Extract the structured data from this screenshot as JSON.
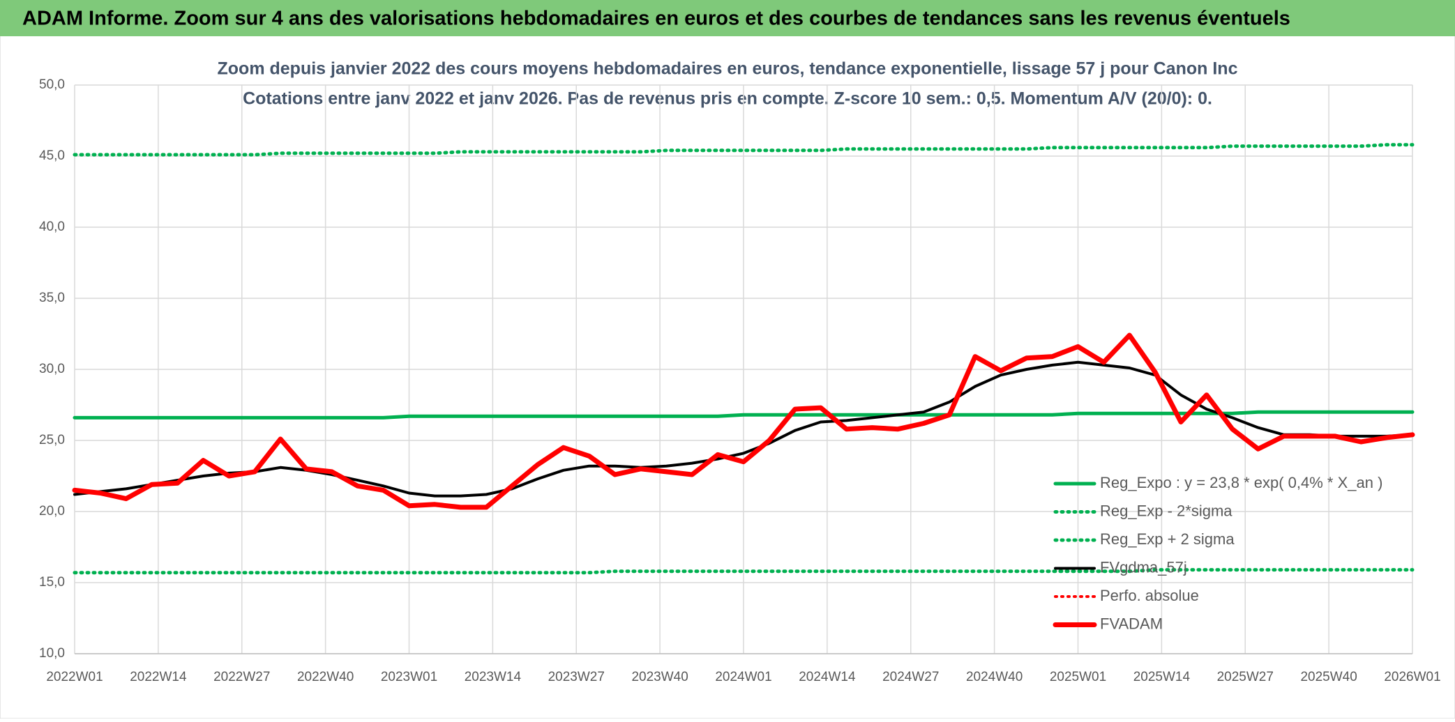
{
  "header": {
    "title": "ADAM Informe. Zoom sur 4 ans des valorisations hebdomadaires en euros et des courbes de tendances sans les revenus éventuels"
  },
  "chart_data": {
    "type": "line",
    "title": "Zoom depuis janvier 2022 des cours moyens hebdomadaires en euros, tendance exponentielle, lissage 57 j pour Canon Inc",
    "subtitle": "Cotations entre janv 2022 et janv 2026. Pas de revenus pris en compte. Z-score 10 sem.: 0,5. Momentum A/V (20/0): 0.",
    "x": [
      0,
      4,
      8,
      12,
      16,
      20,
      24,
      28,
      32,
      36,
      40,
      44,
      48,
      52,
      56,
      60,
      64,
      68,
      72,
      76,
      80,
      84,
      88,
      92,
      96,
      100,
      104,
      108,
      112,
      116,
      120,
      124,
      128,
      132,
      136,
      140,
      144,
      148,
      152,
      156,
      160,
      164,
      168,
      172,
      176,
      180,
      184,
      188,
      192,
      196,
      200,
      204,
      208
    ],
    "xlim": [
      0,
      208
    ],
    "xticks": [
      {
        "value": 0,
        "label": "2022W01"
      },
      {
        "value": 13,
        "label": "2022W14"
      },
      {
        "value": 26,
        "label": "2022W27"
      },
      {
        "value": 39,
        "label": "2022W40"
      },
      {
        "value": 52,
        "label": "2023W01"
      },
      {
        "value": 65,
        "label": "2023W14"
      },
      {
        "value": 78,
        "label": "2023W27"
      },
      {
        "value": 91,
        "label": "2023W40"
      },
      {
        "value": 104,
        "label": "2024W01"
      },
      {
        "value": 117,
        "label": "2024W14"
      },
      {
        "value": 130,
        "label": "2024W27"
      },
      {
        "value": 143,
        "label": "2024W40"
      },
      {
        "value": 156,
        "label": "2025W01"
      },
      {
        "value": 169,
        "label": "2025W14"
      },
      {
        "value": 182,
        "label": "2025W27"
      },
      {
        "value": 195,
        "label": "2025W40"
      },
      {
        "value": 208,
        "label": "2026W01"
      }
    ],
    "ylim": [
      10,
      50
    ],
    "yticks": [
      {
        "value": 10,
        "label": "10,0"
      },
      {
        "value": 15,
        "label": "15,0"
      },
      {
        "value": 20,
        "label": "20,0"
      },
      {
        "value": 25,
        "label": "25,0"
      },
      {
        "value": 30,
        "label": "30,0"
      },
      {
        "value": 35,
        "label": "35,0"
      },
      {
        "value": 40,
        "label": "40,0"
      },
      {
        "value": 45,
        "label": "45,0"
      },
      {
        "value": 50,
        "label": "50,0"
      }
    ],
    "grid": true,
    "legend": "right",
    "series": [
      {
        "name": "Reg_Expo : y = 23,8 * exp( 0,4% *  X_an )",
        "color": "#00b050",
        "line_style": "solid",
        "values": [
          26.6,
          26.6,
          26.6,
          26.6,
          26.6,
          26.6,
          26.6,
          26.6,
          26.6,
          26.6,
          26.6,
          26.6,
          26.6,
          26.7,
          26.7,
          26.7,
          26.7,
          26.7,
          26.7,
          26.7,
          26.7,
          26.7,
          26.7,
          26.7,
          26.7,
          26.7,
          26.8,
          26.8,
          26.8,
          26.8,
          26.8,
          26.8,
          26.8,
          26.8,
          26.8,
          26.8,
          26.8,
          26.8,
          26.8,
          26.9,
          26.9,
          26.9,
          26.9,
          26.9,
          26.9,
          26.9,
          27.0,
          27.0,
          27.0,
          27.0,
          27.0,
          27.0,
          27.0
        ]
      },
      {
        "name": "Reg_Exp - 2*sigma",
        "color": "#00b050",
        "line_style": "dotted",
        "values": [
          15.7,
          15.7,
          15.7,
          15.7,
          15.7,
          15.7,
          15.7,
          15.7,
          15.7,
          15.7,
          15.7,
          15.7,
          15.7,
          15.7,
          15.7,
          15.7,
          15.7,
          15.7,
          15.7,
          15.7,
          15.7,
          15.8,
          15.8,
          15.8,
          15.8,
          15.8,
          15.8,
          15.8,
          15.8,
          15.8,
          15.8,
          15.8,
          15.8,
          15.8,
          15.8,
          15.8,
          15.8,
          15.8,
          15.8,
          15.8,
          15.8,
          15.8,
          15.9,
          15.9,
          15.9,
          15.9,
          15.9,
          15.9,
          15.9,
          15.9,
          15.9,
          15.9,
          15.9
        ]
      },
      {
        "name": "Reg_Exp + 2 sigma",
        "color": "#00b050",
        "line_style": "dotted",
        "values": [
          45.1,
          45.1,
          45.1,
          45.1,
          45.1,
          45.1,
          45.1,
          45.1,
          45.2,
          45.2,
          45.2,
          45.2,
          45.2,
          45.2,
          45.2,
          45.3,
          45.3,
          45.3,
          45.3,
          45.3,
          45.3,
          45.3,
          45.3,
          45.4,
          45.4,
          45.4,
          45.4,
          45.4,
          45.4,
          45.4,
          45.5,
          45.5,
          45.5,
          45.5,
          45.5,
          45.5,
          45.5,
          45.5,
          45.6,
          45.6,
          45.6,
          45.6,
          45.6,
          45.6,
          45.6,
          45.7,
          45.7,
          45.7,
          45.7,
          45.7,
          45.7,
          45.8,
          45.8
        ]
      },
      {
        "name": "FVgdma_57j",
        "color": "#000000",
        "line_style": "solid",
        "values": [
          21.2,
          21.4,
          21.6,
          21.9,
          22.2,
          22.5,
          22.7,
          22.8,
          23.1,
          22.9,
          22.6,
          22.2,
          21.8,
          21.3,
          21.1,
          21.1,
          21.2,
          21.6,
          22.3,
          22.9,
          23.2,
          23.2,
          23.1,
          23.2,
          23.4,
          23.7,
          24.1,
          24.8,
          25.7,
          26.3,
          26.4,
          26.6,
          26.8,
          27.0,
          27.7,
          28.8,
          29.6,
          30.0,
          30.3,
          30.5,
          30.3,
          30.1,
          29.6,
          28.2,
          27.2,
          26.6,
          25.9,
          25.4,
          25.4,
          25.3,
          25.3,
          25.3,
          25.4
        ]
      },
      {
        "name": "Perfo. absolue",
        "color": "#ff0000",
        "line_style": "dotted",
        "values": [
          null,
          null,
          null,
          null,
          null,
          null,
          null,
          null,
          null,
          null,
          null,
          null,
          null,
          null,
          null,
          null,
          null,
          null,
          null,
          null,
          null,
          null,
          null,
          null,
          null,
          null,
          null,
          null,
          null,
          null,
          null,
          null,
          null,
          null,
          null,
          null,
          null,
          null,
          null,
          null,
          null,
          null,
          null,
          null,
          null,
          null,
          null,
          null,
          null,
          null,
          null,
          null,
          null
        ]
      },
      {
        "name": "FVADAM",
        "color": "#ff0000",
        "line_style": "solid",
        "values": [
          21.5,
          21.3,
          20.9,
          21.9,
          22.0,
          23.6,
          22.5,
          22.8,
          25.1,
          23.0,
          22.8,
          21.8,
          21.5,
          20.4,
          20.5,
          20.3,
          20.3,
          21.8,
          23.3,
          24.5,
          23.9,
          22.6,
          23.0,
          22.8,
          22.6,
          24.0,
          23.5,
          25.0,
          27.2,
          27.3,
          25.8,
          25.9,
          25.8,
          26.2,
          26.8,
          30.9,
          29.9,
          30.8,
          30.9,
          31.6,
          30.5,
          32.4,
          29.8,
          26.3,
          28.2,
          25.8,
          24.4,
          25.3,
          25.3,
          25.3,
          24.9,
          25.2,
          25.4
        ]
      }
    ]
  }
}
